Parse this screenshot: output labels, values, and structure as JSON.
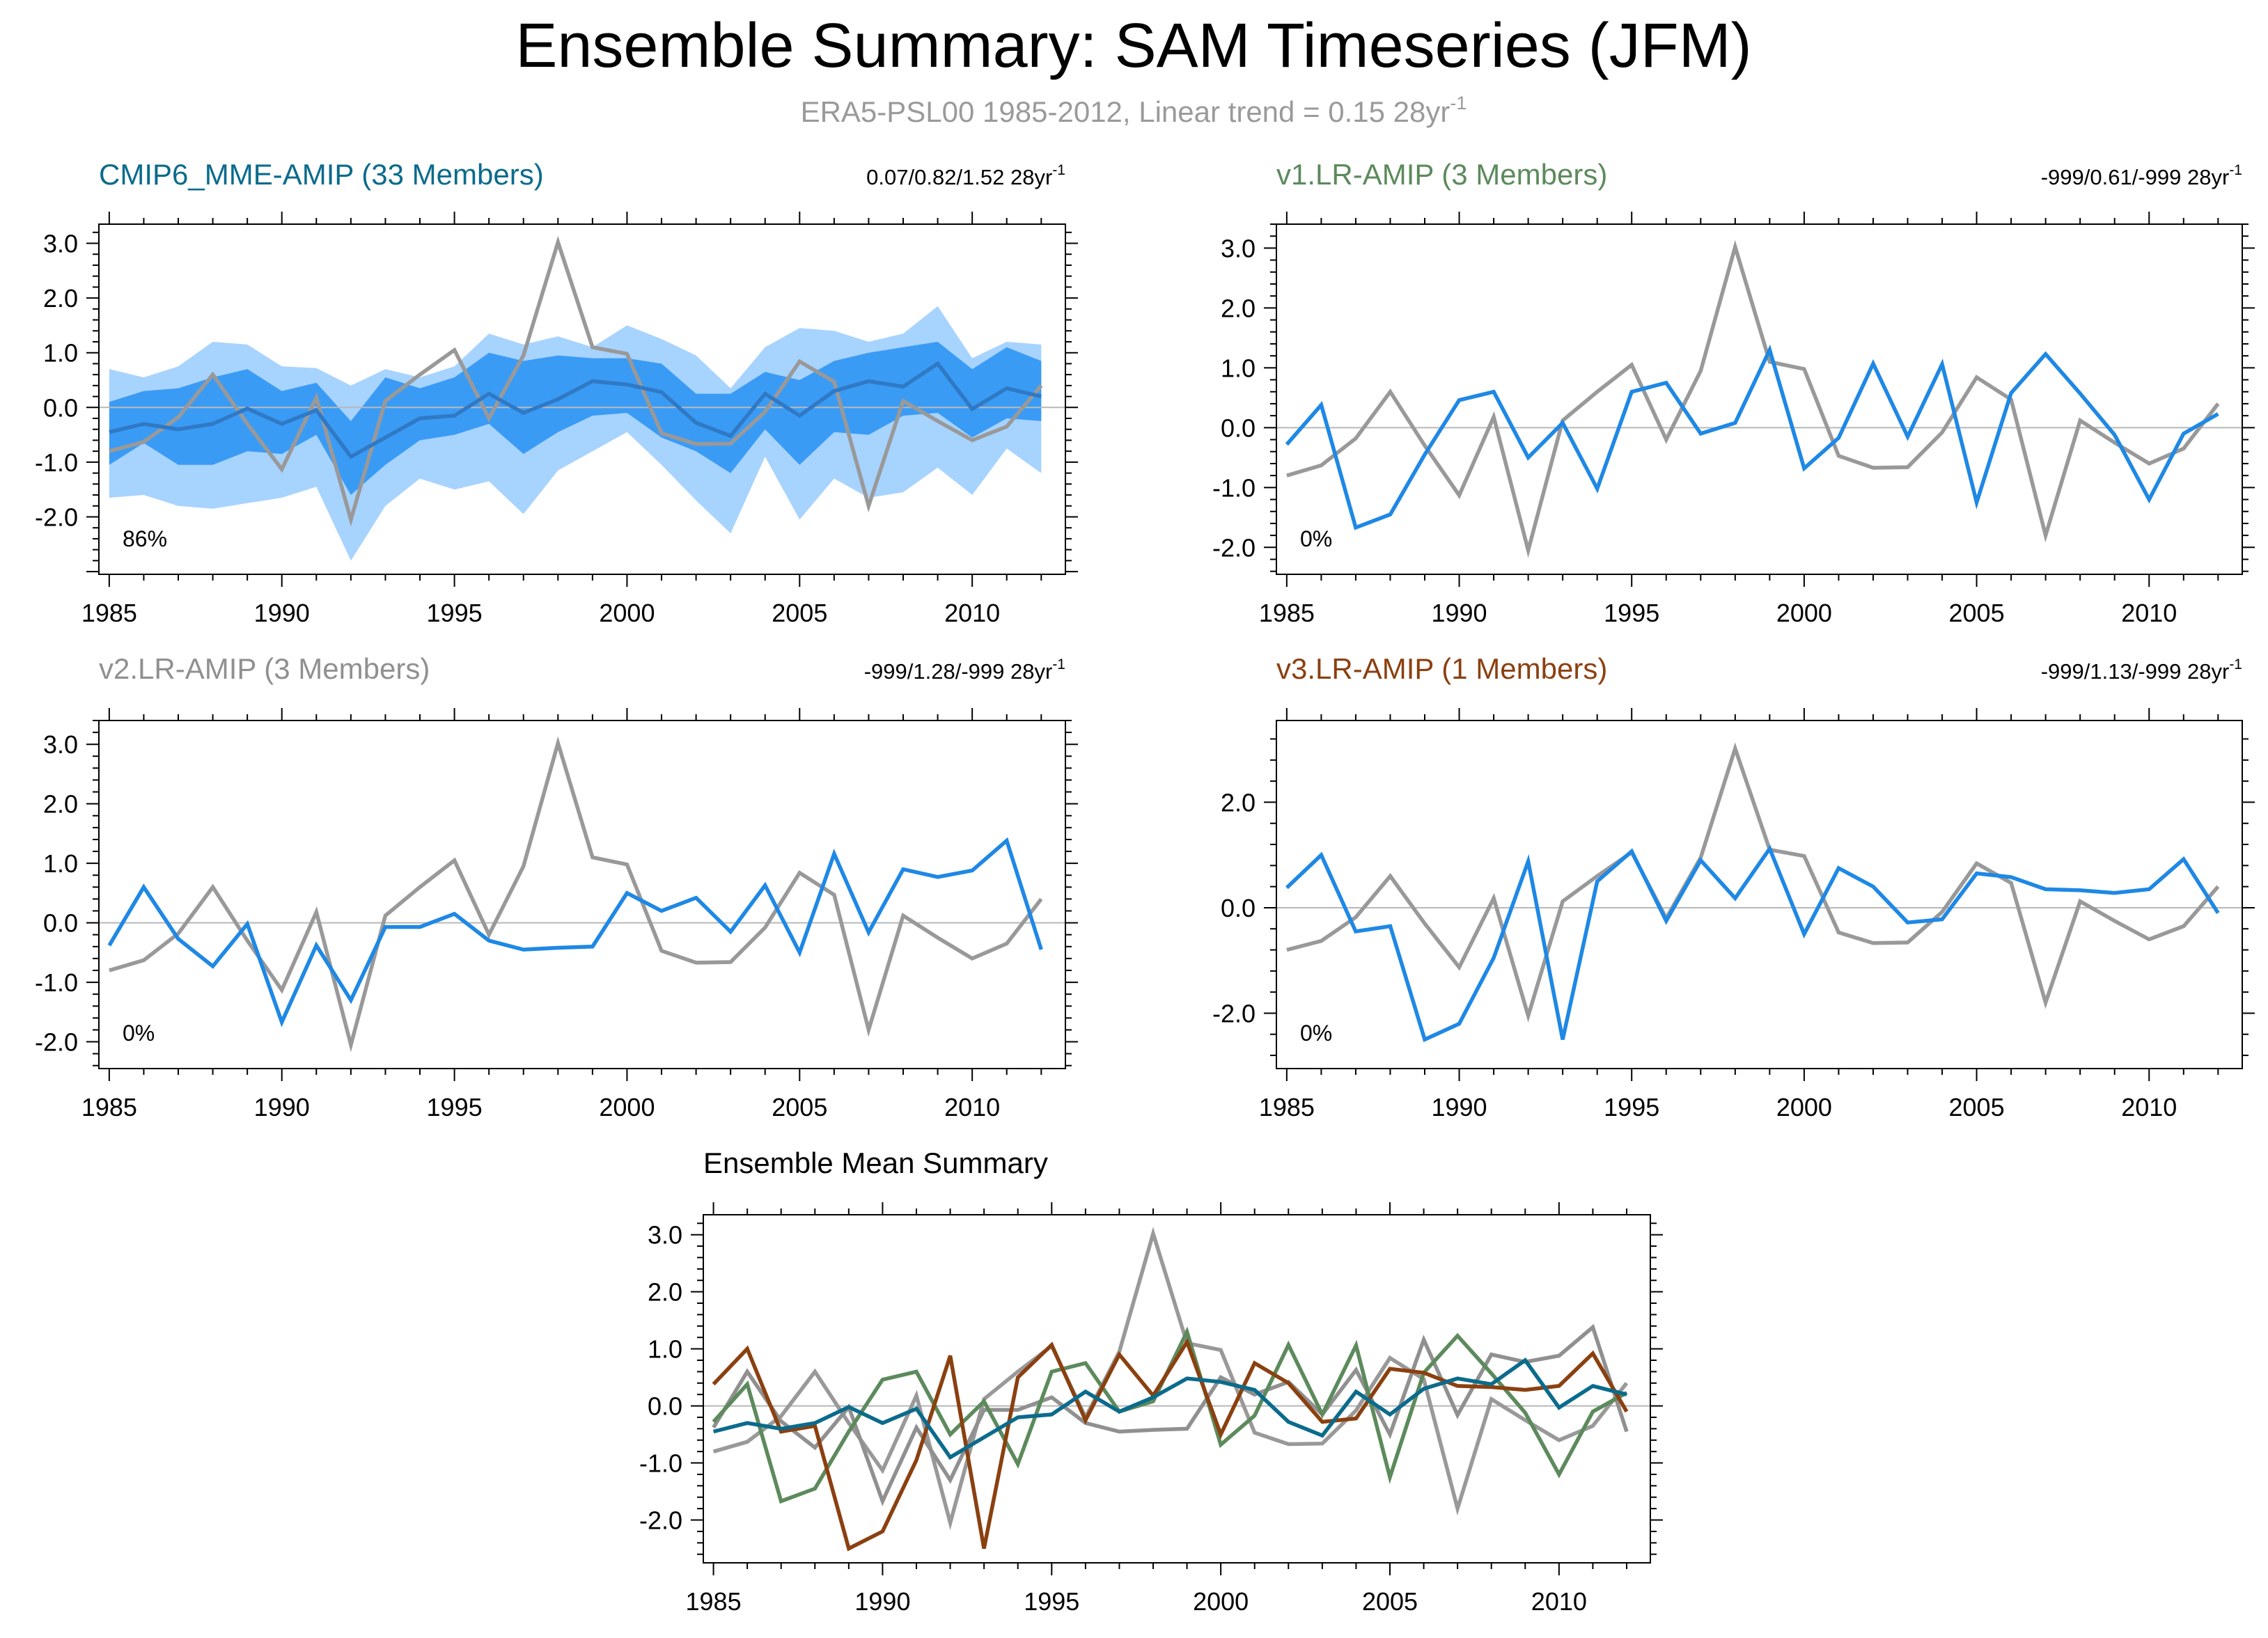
{
  "title": "Ensemble Summary: SAM Timeseries (JFM)",
  "subtitle": "ERA5-PSL00 1985-2012, Linear trend = 0.15 28yr",
  "subtitle_sup": "-1",
  "colors": {
    "obs": "#999999",
    "model": "#1e88e5",
    "mme": "#0b6b8c",
    "band_outer": "#a7d3ff",
    "band_inner": "#3a9bf5",
    "v1": "#5c8a5c",
    "v2": "#909090",
    "v3": "#8b4010"
  },
  "chart_data": [
    {
      "type": "line",
      "id": "p1",
      "title": "CMIP6_MME-AMIP (33 Members)",
      "title_color": "#0b6b8c",
      "stats": "0.07/0.82/1.52 28yr",
      "stats_sup": "-1",
      "percent": "86%",
      "xlim": [
        1984.7,
        2012.7
      ],
      "ylim": [
        -3.05,
        3.35
      ],
      "xticks": [
        "1985",
        "1990",
        "1995",
        "2000",
        "2005",
        "2010"
      ],
      "yticks": [
        "3.0",
        "2.0",
        "1.0",
        "0.0",
        "-1.0",
        "-2.0"
      ],
      "years": [
        1985,
        1986,
        1987,
        1988,
        1989,
        1990,
        1991,
        1992,
        1993,
        1994,
        1995,
        1996,
        1997,
        1998,
        1999,
        2000,
        2001,
        2002,
        2003,
        2004,
        2005,
        2006,
        2007,
        2008,
        2009,
        2010,
        2011,
        2012
      ],
      "band_outer": {
        "upper": [
          0.7,
          0.55,
          0.75,
          1.2,
          1.15,
          0.75,
          0.72,
          0.4,
          0.7,
          0.55,
          0.75,
          1.35,
          1.15,
          1.3,
          1.1,
          1.5,
          1.25,
          0.95,
          0.35,
          1.1,
          1.45,
          1.4,
          1.2,
          1.35,
          1.85,
          0.9,
          1.2,
          1.15
        ],
        "lower": [
          -1.65,
          -1.6,
          -1.8,
          -1.85,
          -1.75,
          -1.65,
          -1.45,
          -2.8,
          -1.8,
          -1.3,
          -1.5,
          -1.35,
          -1.95,
          -1.15,
          -0.8,
          -0.45,
          -1.05,
          -1.7,
          -2.3,
          -0.9,
          -2.05,
          -1.3,
          -1.65,
          -1.55,
          -1.1,
          -1.6,
          -0.75,
          -1.2
        ]
      },
      "band_inner": {
        "upper": [
          0.1,
          0.3,
          0.35,
          0.55,
          0.7,
          0.3,
          0.45,
          -0.25,
          0.55,
          0.35,
          0.55,
          1.0,
          0.85,
          0.95,
          0.9,
          0.9,
          0.8,
          0.25,
          0.25,
          0.65,
          0.5,
          0.85,
          1.0,
          1.1,
          1.2,
          0.7,
          1.1,
          0.85
        ],
        "lower": [
          -1.05,
          -0.65,
          -1.05,
          -1.05,
          -0.8,
          -0.85,
          -0.5,
          -1.6,
          -1.05,
          -0.6,
          -0.5,
          -0.3,
          -0.85,
          -0.45,
          -0.15,
          -0.1,
          -0.55,
          -0.8,
          -1.2,
          -0.4,
          -1.05,
          -0.45,
          -0.5,
          -0.15,
          -0.1,
          -0.55,
          -0.2,
          -0.25
        ]
      },
      "series": [
        {
          "name": "ERA5-PSL00",
          "color": "#999999",
          "values": [
            -0.8,
            -0.63,
            -0.18,
            0.6,
            -0.3,
            -1.13,
            0.18,
            -2.05,
            0.12,
            0.6,
            1.05,
            -0.2,
            0.95,
            3.02,
            1.1,
            0.98,
            -0.47,
            -0.67,
            -0.66,
            -0.08,
            0.84,
            0.47,
            -1.8,
            0.12,
            -0.25,
            -0.6,
            -0.35,
            0.4
          ]
        },
        {
          "name": "CMIP6_MME-AMIP",
          "color": "#2f79c5",
          "values": [
            -0.45,
            -0.3,
            -0.4,
            -0.3,
            -0.02,
            -0.3,
            -0.05,
            -0.9,
            -0.55,
            -0.2,
            -0.15,
            0.25,
            -0.1,
            0.15,
            0.48,
            0.42,
            0.28,
            -0.28,
            -0.52,
            0.25,
            -0.15,
            0.3,
            0.48,
            0.38,
            0.8,
            -0.03,
            0.35,
            0.2
          ]
        }
      ]
    },
    {
      "type": "line",
      "id": "p2",
      "title": "v1.LR-AMIP (3 Members)",
      "title_color": "#5c8a5c",
      "stats": "-999/0.61/-999 28yr",
      "stats_sup": "-1",
      "percent": "0%",
      "xlim": [
        1984.7,
        2012.7
      ],
      "ylim": [
        -2.45,
        3.4
      ],
      "xticks": [
        "1985",
        "1990",
        "1995",
        "2000",
        "2005",
        "2010"
      ],
      "yticks": [
        "3.0",
        "2.0",
        "1.0",
        "0.0",
        "-1.0",
        "-2.0"
      ],
      "years": [
        1985,
        1986,
        1987,
        1988,
        1989,
        1990,
        1991,
        1992,
        1993,
        1994,
        1995,
        1996,
        1997,
        1998,
        1999,
        2000,
        2001,
        2002,
        2003,
        2004,
        2005,
        2006,
        2007,
        2008,
        2009,
        2010,
        2011,
        2012
      ],
      "series": [
        {
          "name": "ERA5-PSL00",
          "color": "#999999",
          "values": [
            -0.8,
            -0.63,
            -0.18,
            0.6,
            -0.3,
            -1.13,
            0.18,
            -2.05,
            0.12,
            0.6,
            1.05,
            -0.2,
            0.95,
            3.02,
            1.1,
            0.98,
            -0.47,
            -0.67,
            -0.66,
            -0.08,
            0.84,
            0.47,
            -1.8,
            0.12,
            -0.25,
            -0.6,
            -0.35,
            0.4
          ]
        },
        {
          "name": "v1.LR-AMIP",
          "color": "#1e88e5",
          "values": [
            -0.28,
            0.38,
            -1.67,
            -1.45,
            -0.45,
            0.46,
            0.6,
            -0.5,
            0.08,
            -1.02,
            0.6,
            0.75,
            -0.1,
            0.08,
            1.3,
            -0.68,
            -0.17,
            1.07,
            -0.15,
            1.06,
            -1.25,
            0.58,
            1.23,
            0.57,
            -0.12,
            -1.2,
            -0.1,
            0.23
          ]
        }
      ]
    },
    {
      "type": "line",
      "id": "p3",
      "title": "v2.LR-AMIP (3 Members)",
      "title_color": "#909090",
      "stats": "-999/1.28/-999 28yr",
      "stats_sup": "-1",
      "percent": "0%",
      "xlim": [
        1984.7,
        2012.7
      ],
      "ylim": [
        -2.45,
        3.4
      ],
      "xticks": [
        "1985",
        "1990",
        "1995",
        "2000",
        "2005",
        "2010"
      ],
      "yticks": [
        "3.0",
        "2.0",
        "1.0",
        "0.0",
        "-1.0",
        "-2.0"
      ],
      "years": [
        1985,
        1986,
        1987,
        1988,
        1989,
        1990,
        1991,
        1992,
        1993,
        1994,
        1995,
        1996,
        1997,
        1998,
        1999,
        2000,
        2001,
        2002,
        2003,
        2004,
        2005,
        2006,
        2007,
        2008,
        2009,
        2010,
        2011,
        2012
      ],
      "series": [
        {
          "name": "ERA5-PSL00",
          "color": "#999999",
          "values": [
            -0.8,
            -0.63,
            -0.18,
            0.6,
            -0.3,
            -1.13,
            0.18,
            -2.05,
            0.12,
            0.6,
            1.05,
            -0.2,
            0.95,
            3.02,
            1.1,
            0.98,
            -0.47,
            -0.67,
            -0.66,
            -0.08,
            0.84,
            0.47,
            -1.8,
            0.12,
            -0.25,
            -0.6,
            -0.35,
            0.4
          ]
        },
        {
          "name": "v2.LR-AMIP",
          "color": "#1e88e5",
          "values": [
            -0.38,
            0.6,
            -0.27,
            -0.73,
            -0.02,
            -1.67,
            -0.38,
            -1.3,
            -0.07,
            -0.07,
            0.15,
            -0.3,
            -0.45,
            -0.42,
            -0.4,
            0.5,
            0.2,
            0.42,
            -0.15,
            0.63,
            -0.5,
            1.16,
            -0.16,
            0.9,
            0.77,
            0.88,
            1.38,
            -0.45
          ]
        }
      ]
    },
    {
      "type": "line",
      "id": "p4",
      "title": "v3.LR-AMIP (1 Members)",
      "title_color": "#8b4010",
      "stats": "-999/1.13/-999 28yr",
      "stats_sup": "-1",
      "percent": "0%",
      "xlim": [
        1984.7,
        2012.7
      ],
      "ylim": [
        -3.05,
        3.55
      ],
      "xticks": [
        "1985",
        "1990",
        "1995",
        "2000",
        "2005",
        "2010"
      ],
      "yticks": [
        "2.0",
        "0.0",
        "-2.0"
      ],
      "years": [
        1985,
        1986,
        1987,
        1988,
        1989,
        1990,
        1991,
        1992,
        1993,
        1994,
        1995,
        1996,
        1997,
        1998,
        1999,
        2000,
        2001,
        2002,
        2003,
        2004,
        2005,
        2006,
        2007,
        2008,
        2009,
        2010,
        2011,
        2012
      ],
      "series": [
        {
          "name": "ERA5-PSL00",
          "color": "#999999",
          "values": [
            -0.8,
            -0.63,
            -0.18,
            0.6,
            -0.3,
            -1.13,
            0.18,
            -2.05,
            0.12,
            0.6,
            1.05,
            -0.2,
            0.95,
            3.02,
            1.1,
            0.98,
            -0.47,
            -0.67,
            -0.66,
            -0.08,
            0.84,
            0.47,
            -1.8,
            0.12,
            -0.25,
            -0.6,
            -0.35,
            0.4
          ]
        },
        {
          "name": "v3.LR-AMIP",
          "color": "#1e88e5",
          "values": [
            0.38,
            1.0,
            -0.45,
            -0.35,
            -2.5,
            -2.2,
            -0.95,
            0.88,
            -2.5,
            0.5,
            1.07,
            -0.25,
            0.9,
            0.18,
            1.12,
            -0.5,
            0.75,
            0.4,
            -0.28,
            -0.22,
            0.65,
            0.58,
            0.35,
            0.33,
            0.28,
            0.35,
            0.92,
            -0.1
          ]
        }
      ]
    },
    {
      "type": "line",
      "id": "p5",
      "title": "Ensemble Mean Summary",
      "title_color": "#000000",
      "xlim": [
        1984.7,
        2012.7
      ],
      "ylim": [
        -2.75,
        3.35
      ],
      "xticks": [
        "1985",
        "1990",
        "1995",
        "2000",
        "2005",
        "2010"
      ],
      "yticks": [
        "3.0",
        "2.0",
        "1.0",
        "0.0",
        "-1.0",
        "-2.0"
      ],
      "years": [
        1985,
        1986,
        1987,
        1988,
        1989,
        1990,
        1991,
        1992,
        1993,
        1994,
        1995,
        1996,
        1997,
        1998,
        1999,
        2000,
        2001,
        2002,
        2003,
        2004,
        2005,
        2006,
        2007,
        2008,
        2009,
        2010,
        2011,
        2012
      ],
      "series": [
        {
          "name": "ERA5-PSL00",
          "color": "#999999",
          "values": [
            -0.8,
            -0.63,
            -0.18,
            0.6,
            -0.3,
            -1.13,
            0.18,
            -2.05,
            0.12,
            0.6,
            1.05,
            -0.2,
            0.95,
            3.02,
            1.1,
            0.98,
            -0.47,
            -0.67,
            -0.66,
            -0.08,
            0.84,
            0.47,
            -1.8,
            0.12,
            -0.25,
            -0.6,
            -0.35,
            0.4
          ]
        },
        {
          "name": "v2.LR-AMIP",
          "color": "#909090",
          "values": [
            -0.38,
            0.6,
            -0.27,
            -0.73,
            -0.02,
            -1.67,
            -0.38,
            -1.3,
            -0.07,
            -0.07,
            0.15,
            -0.3,
            -0.45,
            -0.42,
            -0.4,
            0.5,
            0.2,
            0.42,
            -0.15,
            0.63,
            -0.5,
            1.16,
            -0.16,
            0.9,
            0.77,
            0.88,
            1.38,
            -0.45
          ]
        },
        {
          "name": "v1.LR-AMIP",
          "color": "#5c8a5c",
          "values": [
            -0.28,
            0.38,
            -1.67,
            -1.45,
            -0.45,
            0.46,
            0.6,
            -0.5,
            0.08,
            -1.02,
            0.6,
            0.75,
            -0.1,
            0.08,
            1.3,
            -0.68,
            -0.17,
            1.07,
            -0.15,
            1.06,
            -1.25,
            0.58,
            1.23,
            0.57,
            -0.12,
            -1.2,
            -0.1,
            0.23
          ]
        },
        {
          "name": "v3.LR-AMIP",
          "color": "#8b4010",
          "values": [
            0.38,
            1.0,
            -0.45,
            -0.35,
            -2.5,
            -2.2,
            -0.95,
            0.88,
            -2.5,
            0.5,
            1.07,
            -0.25,
            0.9,
            0.18,
            1.12,
            -0.5,
            0.75,
            0.4,
            -0.28,
            -0.22,
            0.65,
            0.58,
            0.35,
            0.33,
            0.28,
            0.35,
            0.92,
            -0.1
          ]
        },
        {
          "name": "CMIP6_MME-AMIP",
          "color": "#0b6b8c",
          "values": [
            -0.45,
            -0.3,
            -0.4,
            -0.3,
            -0.02,
            -0.3,
            -0.05,
            -0.9,
            -0.55,
            -0.2,
            -0.15,
            0.25,
            -0.1,
            0.15,
            0.48,
            0.42,
            0.28,
            -0.28,
            -0.52,
            0.25,
            -0.15,
            0.3,
            0.48,
            0.38,
            0.8,
            -0.03,
            0.35,
            0.2
          ]
        }
      ]
    }
  ]
}
